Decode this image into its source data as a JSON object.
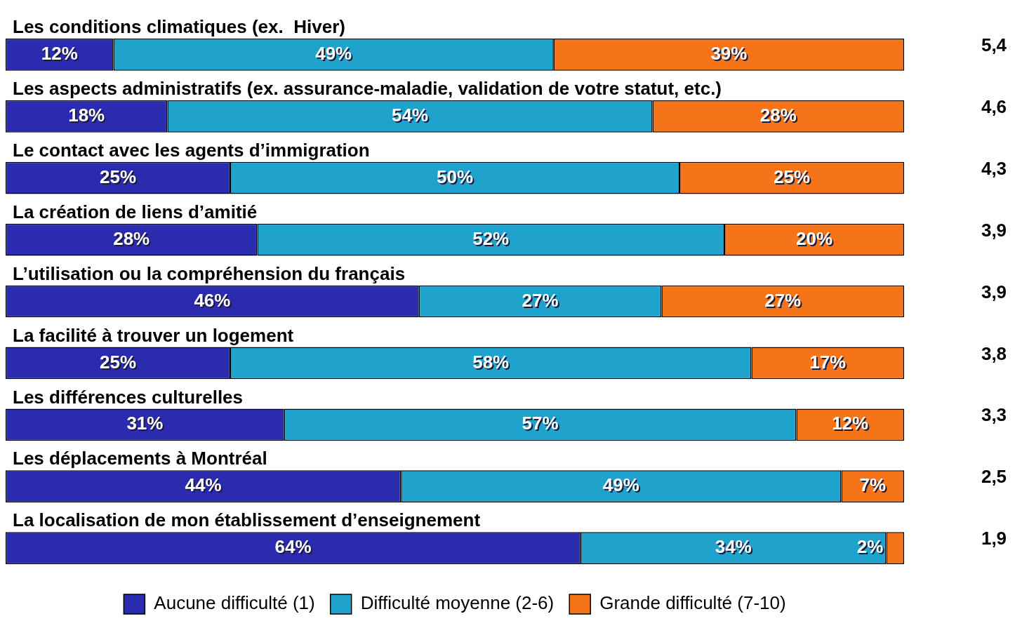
{
  "chart_data": {
    "type": "bar",
    "orientation": "horizontal",
    "stacked": true,
    "legend": "bottom",
    "categories": [
      "Les conditions climatiques (ex.  Hiver)",
      "Les aspects administratifs (ex. assurance-maladie, validation de votre statut, etc.)",
      "Le contact avec les agents d’immigration",
      "La création de liens d’amitié",
      "L’utilisation ou la compréhension du français",
      "La facilité à trouver un logement",
      "Les différences culturelles",
      "Les déplacements à Montréal",
      "La localisation de mon établissement d’enseignement"
    ],
    "series": [
      {
        "name": "Aucune difficulté (1)",
        "color": "#2b2bb0",
        "values": [
          12,
          18,
          25,
          28,
          46,
          25,
          31,
          44,
          64
        ],
        "value_labels": [
          "12%",
          "18%",
          "25%",
          "28%",
          "46%",
          "25%",
          "31%",
          "44%",
          "64%"
        ]
      },
      {
        "name": "Difficulté moyenne (2-6)",
        "color": "#1fa3cc",
        "values": [
          49,
          54,
          50,
          52,
          27,
          58,
          57,
          49,
          34
        ],
        "value_labels": [
          "49%",
          "54%",
          "50%",
          "52%",
          "27%",
          "58%",
          "57%",
          "49%",
          "34%"
        ]
      },
      {
        "name": "Grande difficulté (7-10)",
        "color": "#f5741a",
        "values": [
          39,
          28,
          25,
          20,
          27,
          17,
          12,
          7,
          2
        ],
        "value_labels": [
          "39%",
          "28%",
          "25%",
          "20%",
          "27%",
          "17%",
          "12%",
          "7%",
          "2%"
        ]
      }
    ],
    "annotations": [
      "5,4",
      "4,6",
      "4,3",
      "3,9",
      "3,9",
      "3,8",
      "3,3",
      "2,5",
      "1,9"
    ]
  }
}
